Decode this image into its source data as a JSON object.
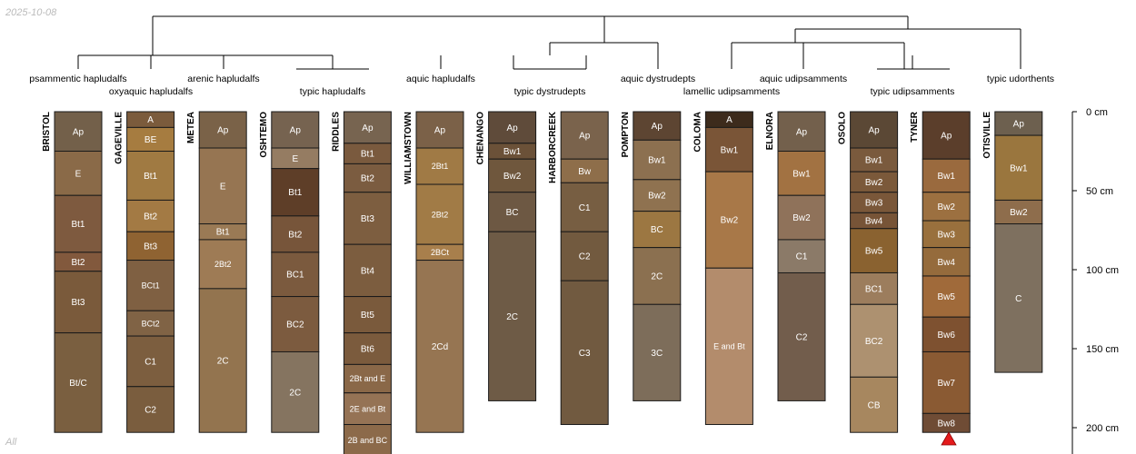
{
  "date_stamp": "2025-10-08",
  "corner_label": "All",
  "scale": {
    "unit": "cm",
    "ticks": [
      0,
      50,
      100,
      150,
      200
    ]
  },
  "group_labels": [
    "psammentic hapludalfs",
    "oxyaquic hapludalfs",
    "arenic hapludalfs",
    "typic hapludalfs",
    "aquic hapludalfs",
    "typic dystrudepts",
    "aquic dystrudepts",
    "lamellic udipsamments",
    "aquic udipsamments",
    "typic udipsamments",
    "typic udorthents"
  ],
  "colors": {
    "horizon_border": "#1a1a1a",
    "marker": "#e41a1c",
    "line": "#000000"
  },
  "profiles": [
    {
      "name": "BRISTOL",
      "horizons": [
        {
          "label": "Ap",
          "top": 0,
          "bottom": 25,
          "color": "#73604a"
        },
        {
          "label": "E",
          "top": 25,
          "bottom": 53,
          "color": "#8a6a48"
        },
        {
          "label": "Bt1",
          "top": 53,
          "bottom": 89,
          "color": "#7e5a3f"
        },
        {
          "label": "Bt2",
          "top": 89,
          "bottom": 101,
          "color": "#82593d"
        },
        {
          "label": "Bt3",
          "top": 101,
          "bottom": 140,
          "color": "#7a5a3b"
        },
        {
          "label": "Bt/C",
          "top": 140,
          "bottom": 203,
          "color": "#7a5f40"
        }
      ]
    },
    {
      "name": "GAGEVILLE",
      "horizons": [
        {
          "label": "A",
          "top": 0,
          "bottom": 10,
          "color": "#7b5b3c"
        },
        {
          "label": "BE",
          "top": 10,
          "bottom": 25,
          "color": "#a67c40"
        },
        {
          "label": "Bt1",
          "top": 25,
          "bottom": 56,
          "color": "#a07a42"
        },
        {
          "label": "Bt2",
          "top": 56,
          "bottom": 76,
          "color": "#a37a44"
        },
        {
          "label": "Bt3",
          "top": 76,
          "bottom": 94,
          "color": "#8f6332"
        },
        {
          "label": "BCt1",
          "top": 94,
          "bottom": 126,
          "color": "#7f6042"
        },
        {
          "label": "BCt2",
          "top": 126,
          "bottom": 142,
          "color": "#806345"
        },
        {
          "label": "C1",
          "top": 142,
          "bottom": 174,
          "color": "#7c5e3f"
        },
        {
          "label": "C2",
          "top": 174,
          "bottom": 203,
          "color": "#7a5d3e"
        }
      ]
    },
    {
      "name": "METEA",
      "horizons": [
        {
          "label": "Ap",
          "top": 0,
          "bottom": 23,
          "color": "#7a6248"
        },
        {
          "label": "E",
          "top": 23,
          "bottom": 71,
          "color": "#967552"
        },
        {
          "label": "Bt1",
          "top": 71,
          "bottom": 81,
          "color": "#9a7a55"
        },
        {
          "label": "2Bt2",
          "top": 81,
          "bottom": 112,
          "color": "#9e7b55"
        },
        {
          "label": "2C",
          "top": 112,
          "bottom": 203,
          "color": "#93744f"
        }
      ]
    },
    {
      "name": "OSHTEMO",
      "horizons": [
        {
          "label": "Ap",
          "top": 0,
          "bottom": 23,
          "color": "#766350"
        },
        {
          "label": "E",
          "top": 23,
          "bottom": 36,
          "color": "#957c62"
        },
        {
          "label": "Bt1",
          "top": 36,
          "bottom": 66,
          "color": "#5e3e28"
        },
        {
          "label": "Bt2",
          "top": 66,
          "bottom": 89,
          "color": "#77553a"
        },
        {
          "label": "BC1",
          "top": 89,
          "bottom": 117,
          "color": "#7b5a3e"
        },
        {
          "label": "BC2",
          "top": 117,
          "bottom": 152,
          "color": "#7c5b3f"
        },
        {
          "label": "2C",
          "top": 152,
          "bottom": 203,
          "color": "#857460"
        }
      ]
    },
    {
      "name": "RIDDLES",
      "horizons": [
        {
          "label": "Ap",
          "top": 0,
          "bottom": 20,
          "color": "#776450"
        },
        {
          "label": "Bt1",
          "top": 20,
          "bottom": 33,
          "color": "#7a5a3e"
        },
        {
          "label": "Bt2",
          "top": 33,
          "bottom": 51,
          "color": "#7b5c40"
        },
        {
          "label": "Bt3",
          "top": 51,
          "bottom": 84,
          "color": "#7d5e40"
        },
        {
          "label": "Bt4",
          "top": 84,
          "bottom": 117,
          "color": "#7c5d3f"
        },
        {
          "label": "Bt5",
          "top": 117,
          "bottom": 140,
          "color": "#7a5a3c"
        },
        {
          "label": "Bt6",
          "top": 140,
          "bottom": 160,
          "color": "#7b5b3d"
        },
        {
          "label": "2Bt and E",
          "top": 160,
          "bottom": 178,
          "color": "#8a6848"
        },
        {
          "label": "2E and Bt",
          "top": 178,
          "bottom": 198,
          "color": "#957355"
        },
        {
          "label": "2B and BC",
          "top": 198,
          "bottom": 218,
          "color": "#8c6a4a"
        }
      ]
    },
    {
      "name": "WILLIAMSTOWN",
      "horizons": [
        {
          "label": "Ap",
          "top": 0,
          "bottom": 23,
          "color": "#7b6148"
        },
        {
          "label": "2Bt1",
          "top": 23,
          "bottom": 46,
          "color": "#a07a45"
        },
        {
          "label": "2Bt2",
          "top": 46,
          "bottom": 84,
          "color": "#a17b46"
        },
        {
          "label": "2BCt",
          "top": 84,
          "bottom": 94,
          "color": "#a87f4c"
        },
        {
          "label": "2Cd",
          "top": 94,
          "bottom": 203,
          "color": "#967552"
        }
      ]
    },
    {
      "name": "CHENANGO",
      "horizons": [
        {
          "label": "Ap",
          "top": 0,
          "bottom": 20,
          "color": "#5f4b3a"
        },
        {
          "label": "Bw1",
          "top": 20,
          "bottom": 30,
          "color": "#6b5138"
        },
        {
          "label": "Bw2",
          "top": 30,
          "bottom": 51,
          "color": "#6f573d"
        },
        {
          "label": "BC",
          "top": 51,
          "bottom": 76,
          "color": "#6d5843"
        },
        {
          "label": "2C",
          "top": 76,
          "bottom": 183,
          "color": "#6e5b46"
        }
      ]
    },
    {
      "name": "HARBORCREEK",
      "horizons": [
        {
          "label": "Ap",
          "top": 0,
          "bottom": 30,
          "color": "#7a634c"
        },
        {
          "label": "Bw",
          "top": 30,
          "bottom": 45,
          "color": "#8e6e4a"
        },
        {
          "label": "C1",
          "top": 45,
          "bottom": 76,
          "color": "#775e42"
        },
        {
          "label": "C2",
          "top": 76,
          "bottom": 107,
          "color": "#725a3f"
        },
        {
          "label": "C3",
          "top": 107,
          "bottom": 198,
          "color": "#715a40"
        }
      ]
    },
    {
      "name": "POMPTON",
      "horizons": [
        {
          "label": "Ap",
          "top": 0,
          "bottom": 18,
          "color": "#5d4532"
        },
        {
          "label": "Bw1",
          "top": 18,
          "bottom": 43,
          "color": "#8c7050"
        },
        {
          "label": "Bw2",
          "top": 43,
          "bottom": 63,
          "color": "#8f7250"
        },
        {
          "label": "BC",
          "top": 63,
          "bottom": 86,
          "color": "#9c7742"
        },
        {
          "label": "2C",
          "top": 86,
          "bottom": 122,
          "color": "#8b7050"
        },
        {
          "label": "3C",
          "top": 122,
          "bottom": 183,
          "color": "#7d6d5a"
        }
      ]
    },
    {
      "name": "COLOMA",
      "horizons": [
        {
          "label": "A",
          "top": 0,
          "bottom": 10,
          "color": "#3d2b1c"
        },
        {
          "label": "Bw1",
          "top": 10,
          "bottom": 38,
          "color": "#7a5537"
        },
        {
          "label": "Bw2",
          "top": 38,
          "bottom": 99,
          "color": "#a87848"
        },
        {
          "label": "E and Bt",
          "top": 99,
          "bottom": 198,
          "color": "#b38c6c"
        }
      ]
    },
    {
      "name": "ELNORA",
      "horizons": [
        {
          "label": "Ap",
          "top": 0,
          "bottom": 25,
          "color": "#73604c"
        },
        {
          "label": "Bw1",
          "top": 25,
          "bottom": 53,
          "color": "#a27242"
        },
        {
          "label": "Bw2",
          "top": 53,
          "bottom": 81,
          "color": "#8f725a"
        },
        {
          "label": "C1",
          "top": 81,
          "bottom": 102,
          "color": "#8b7a68"
        },
        {
          "label": "C2",
          "top": 102,
          "bottom": 183,
          "color": "#725d4c"
        }
      ]
    },
    {
      "name": "OSOLO",
      "horizons": [
        {
          "label": "Ap",
          "top": 0,
          "bottom": 23,
          "color": "#5b4835"
        },
        {
          "label": "Bw1",
          "top": 23,
          "bottom": 38,
          "color": "#7a5a3d"
        },
        {
          "label": "Bw2",
          "top": 38,
          "bottom": 51,
          "color": "#7b593a"
        },
        {
          "label": "Bw3",
          "top": 51,
          "bottom": 64,
          "color": "#7a5739"
        },
        {
          "label": "Bw4",
          "top": 64,
          "bottom": 74,
          "color": "#775437"
        },
        {
          "label": "Bw5",
          "top": 74,
          "bottom": 102,
          "color": "#8a6230"
        },
        {
          "label": "BC1",
          "top": 102,
          "bottom": 122,
          "color": "#9c7d5d"
        },
        {
          "label": "BC2",
          "top": 122,
          "bottom": 168,
          "color": "#ad9170"
        },
        {
          "label": "CB",
          "top": 168,
          "bottom": 203,
          "color": "#a7875f"
        }
      ]
    },
    {
      "name": "TYNER",
      "horizons": [
        {
          "label": "Ap",
          "top": 0,
          "bottom": 30,
          "color": "#5b3e2b"
        },
        {
          "label": "Bw1",
          "top": 30,
          "bottom": 51,
          "color": "#9a6a3e"
        },
        {
          "label": "Bw2",
          "top": 51,
          "bottom": 69,
          "color": "#9c7040"
        },
        {
          "label": "Bw3",
          "top": 69,
          "bottom": 86,
          "color": "#99703d"
        },
        {
          "label": "Bw4",
          "top": 86,
          "bottom": 104,
          "color": "#956b3c"
        },
        {
          "label": "Bw5",
          "top": 104,
          "bottom": 130,
          "color": "#a06a3a"
        },
        {
          "label": "Bw6",
          "top": 130,
          "bottom": 152,
          "color": "#7e5130"
        },
        {
          "label": "Bw7",
          "top": 152,
          "bottom": 191,
          "color": "#8a5a33"
        },
        {
          "label": "Bw8",
          "top": 191,
          "bottom": 203,
          "color": "#6f4c35"
        }
      ]
    },
    {
      "name": "OTISVILLE",
      "horizons": [
        {
          "label": "Ap",
          "top": 0,
          "bottom": 15,
          "color": "#6d604f"
        },
        {
          "label": "Bw1",
          "top": 15,
          "bottom": 56,
          "color": "#9a763e"
        },
        {
          "label": "Bw2",
          "top": 56,
          "bottom": 71,
          "color": "#8e6d4c"
        },
        {
          "label": "C",
          "top": 71,
          "bottom": 165,
          "color": "#7e705f"
        }
      ]
    }
  ]
}
